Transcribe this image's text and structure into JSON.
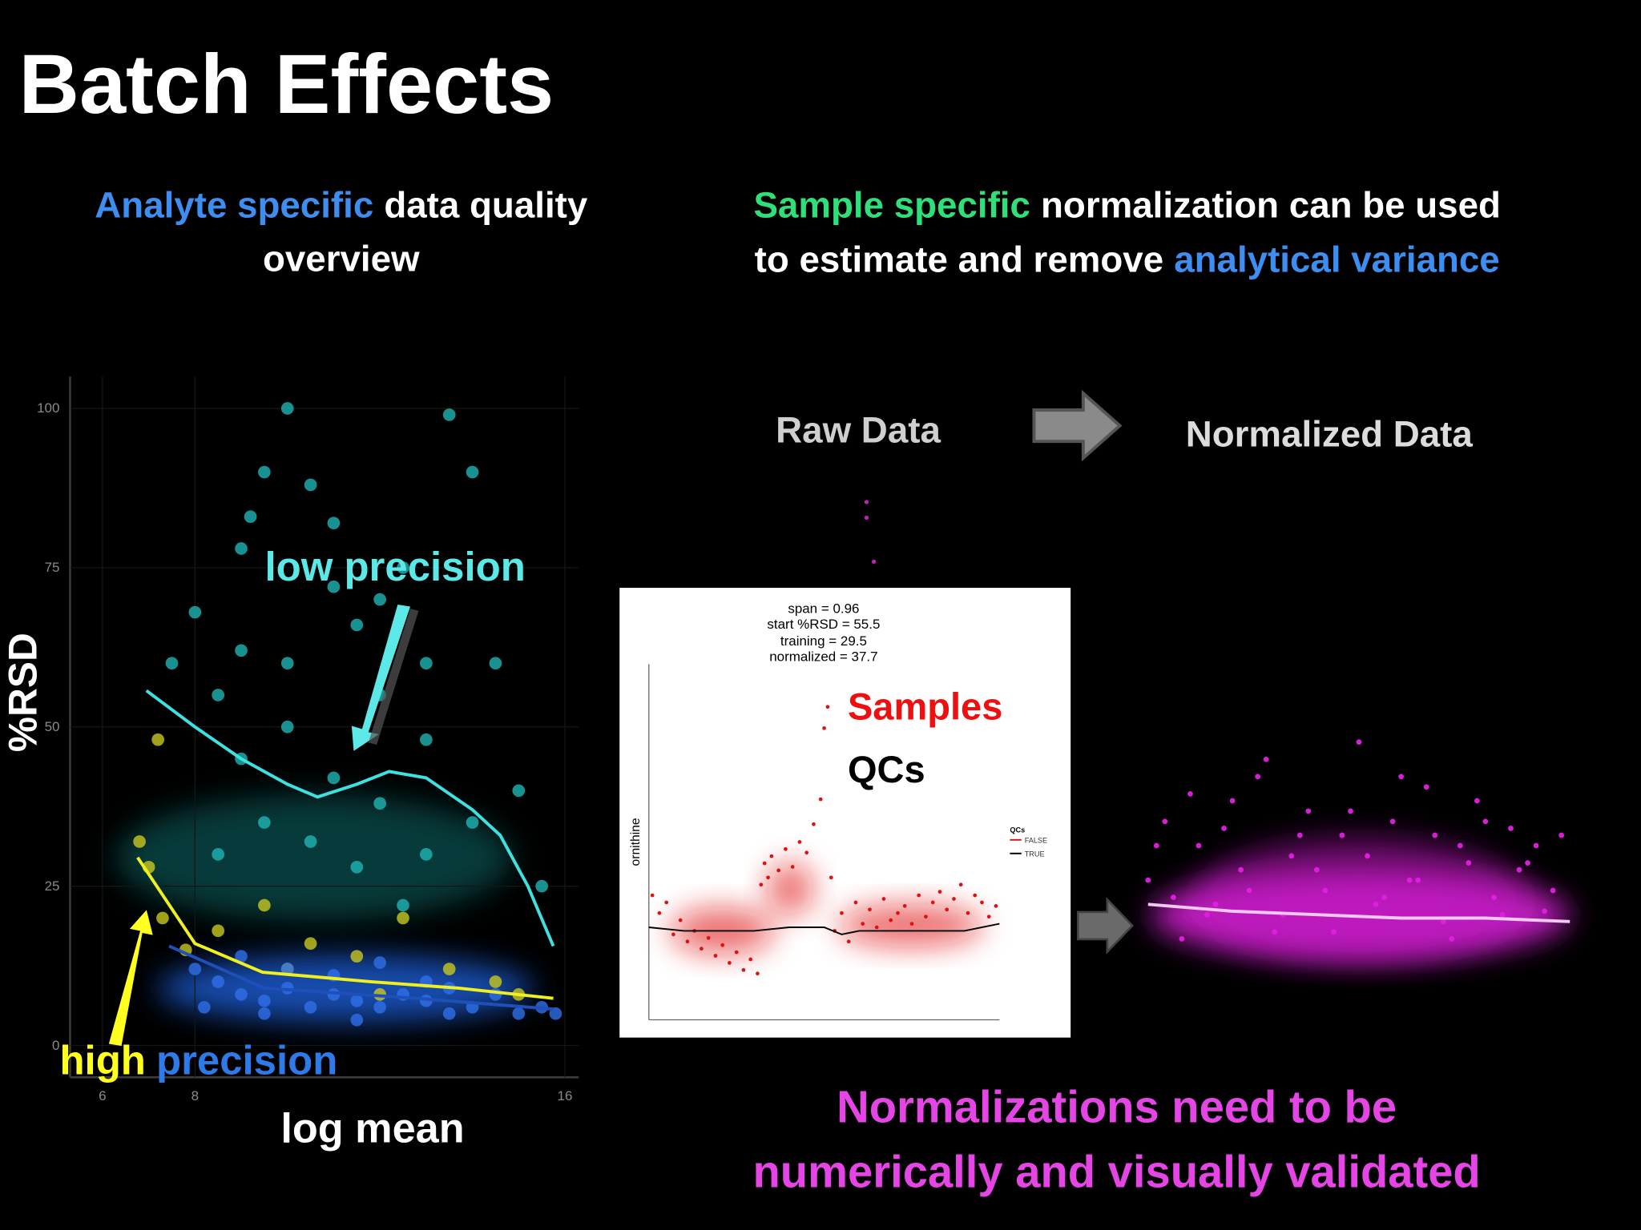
{
  "title": "Batch Effects",
  "left_heading": [
    "Analyte specific",
    "data quality",
    "overview"
  ],
  "right_heading": [
    "Sample specific",
    "normalization can be used",
    "to estimate and remove",
    "analytical variance"
  ],
  "flow": [
    "Raw Data",
    "Normalized Data"
  ],
  "bottom_text": [
    "Normalizations need to be",
    "numerically and visually validated"
  ],
  "chart_data": [
    {
      "type": "scatter",
      "y_label": "%RSD",
      "x_label": "log mean",
      "annotations": [
        "low precision",
        "high",
        "precision"
      ],
      "xlim": [
        5.3,
        16.3
      ],
      "ylim": [
        -5,
        105
      ],
      "xticks": [
        6,
        8,
        16
      ],
      "yticks": [
        0,
        25,
        50,
        75,
        100
      ],
      "grid": true,
      "series": [
        {
          "color": "#1fb5b5",
          "x": [
            7.5,
            8,
            8.5,
            9,
            9.2,
            9.5,
            10,
            10.5,
            11,
            11.5,
            12,
            12.5,
            13,
            13.5,
            14,
            14.5,
            15,
            15.5,
            9,
            10,
            11,
            12,
            13,
            10.5,
            11.5,
            12.5,
            9.5,
            8.5,
            14,
            13,
            10,
            12,
            11,
            9
          ],
          "values": [
            60,
            68,
            55,
            78,
            83,
            90,
            100,
            88,
            82,
            66,
            70,
            75,
            60,
            99,
            90,
            60,
            40,
            25,
            45,
            50,
            42,
            38,
            48,
            32,
            28,
            22,
            35,
            30,
            35,
            30,
            60,
            55,
            72,
            62
          ]
        },
        {
          "color": "#c8c820",
          "x": [
            6.8,
            7,
            7.3,
            7.8,
            8.5,
            9.5,
            10.5,
            11.5,
            12.5,
            13.5,
            14.5,
            15,
            7.2,
            10,
            12
          ],
          "values": [
            32,
            28,
            20,
            15,
            18,
            22,
            16,
            14,
            20,
            12,
            10,
            8,
            48,
            12,
            8
          ]
        },
        {
          "color": "#2f6fe8",
          "x": [
            8,
            8.5,
            9,
            9.5,
            10,
            10.5,
            11,
            11.5,
            12,
            12.5,
            13,
            13.5,
            14,
            14.5,
            15,
            15.5,
            9,
            10,
            11,
            12,
            13,
            9.5,
            11.5,
            13.5,
            8.2,
            15.8
          ],
          "values": [
            12,
            10,
            8,
            7,
            9,
            6,
            8,
            7,
            6,
            8,
            7,
            5,
            6,
            8,
            5,
            6,
            14,
            12,
            11,
            13,
            10,
            5,
            4,
            9,
            6,
            5
          ]
        },
        {
          "mode": "line",
          "color": "#3fe0e0",
          "x": [
            6.95,
            8,
            9,
            10,
            10.65,
            11.5,
            12.2,
            13,
            14,
            14.6,
            15.2,
            15.75
          ],
          "values": [
            55.7,
            50,
            45,
            41,
            39,
            41,
            43,
            42,
            37,
            33,
            25,
            15.6
          ]
        },
        {
          "mode": "line",
          "color": "#f0f020",
          "x": [
            6.76,
            8,
            9.46,
            11.8,
            13.7,
            15.75
          ],
          "values": [
            29.5,
            16,
            11.5,
            10,
            9,
            7.4
          ]
        },
        {
          "mode": "line",
          "color": "#1f4fb8",
          "x": [
            7.44,
            9.5,
            12.8,
            15.75
          ],
          "values": [
            15.6,
            9,
            7.4,
            5.7
          ]
        }
      ]
    },
    {
      "type": "scatter",
      "y_label": "ornithine",
      "annotations": [
        "span = 0.96",
        "start %RSD = 55.5",
        "training = 29.5",
        "normalized = 37.7"
      ],
      "labels": [
        "Samples",
        "QCs"
      ],
      "legend_title": "QCs",
      "xlim": [
        0,
        100
      ],
      "ylim": [
        0,
        100
      ],
      "series": [
        {
          "name": "FALSE",
          "color": "#e01010",
          "x": [
            1,
            3,
            5,
            7,
            9,
            11,
            13,
            15,
            17,
            19,
            21,
            23,
            25,
            27,
            29,
            31,
            32,
            33,
            34,
            35,
            37,
            39,
            41,
            43,
            45,
            47,
            49,
            50,
            51,
            52,
            53,
            55,
            57,
            59,
            61,
            63,
            65,
            67,
            69,
            71,
            73,
            75,
            77,
            79,
            81,
            83,
            85,
            87,
            89,
            91,
            93,
            95,
            97,
            99
          ],
          "values": [
            35,
            30,
            33,
            24,
            28,
            22,
            25,
            20,
            23,
            18,
            21,
            16,
            19,
            14,
            17,
            13,
            38,
            44,
            40,
            46,
            42,
            48,
            43,
            50,
            47,
            55,
            62,
            82,
            88,
            40,
            25,
            30,
            22,
            33,
            27,
            31,
            26,
            34,
            28,
            30,
            32,
            27,
            35,
            29,
            33,
            36,
            31,
            34,
            38,
            30,
            35,
            33,
            29,
            32
          ]
        },
        {
          "name": "TRUE",
          "mode": "line",
          "color": "#000000",
          "x": [
            0,
            10,
            20,
            30,
            40,
            50,
            55,
            60,
            70,
            80,
            90,
            100
          ],
          "values": [
            26,
            25,
            25,
            25,
            26,
            26,
            24,
            25,
            25,
            25,
            25,
            27
          ]
        }
      ]
    },
    {
      "type": "scatter",
      "xlim": [
        0,
        100
      ],
      "ylim": [
        0,
        100
      ],
      "series": [
        {
          "color": "#e020e0",
          "x": [
            2,
            6,
            10,
            14,
            18,
            22,
            26,
            30,
            34,
            38,
            42,
            46,
            50,
            54,
            58,
            62,
            66,
            70,
            74,
            78,
            82,
            86,
            90,
            94,
            98,
            0,
            4,
            8,
            12,
            16,
            20,
            24,
            28,
            32,
            36,
            40,
            44,
            48,
            52,
            56,
            60,
            64,
            68,
            72,
            76,
            80,
            84,
            88,
            92,
            96
          ],
          "values": [
            55,
            40,
            70,
            35,
            60,
            48,
            75,
            30,
            52,
            65,
            42,
            58,
            85,
            38,
            62,
            45,
            72,
            33,
            55,
            68,
            40,
            60,
            50,
            36,
            58,
            45,
            62,
            28,
            55,
            38,
            68,
            42,
            80,
            35,
            58,
            48,
            30,
            65,
            52,
            40,
            75,
            45,
            58,
            28,
            50,
            62,
            35,
            48,
            55,
            42
          ]
        },
        {
          "mode": "line",
          "color": "#f0c8f0",
          "x": [
            0,
            20,
            40,
            60,
            80,
            100
          ],
          "values": [
            38,
            36,
            35,
            34,
            34,
            33
          ]
        }
      ]
    }
  ]
}
